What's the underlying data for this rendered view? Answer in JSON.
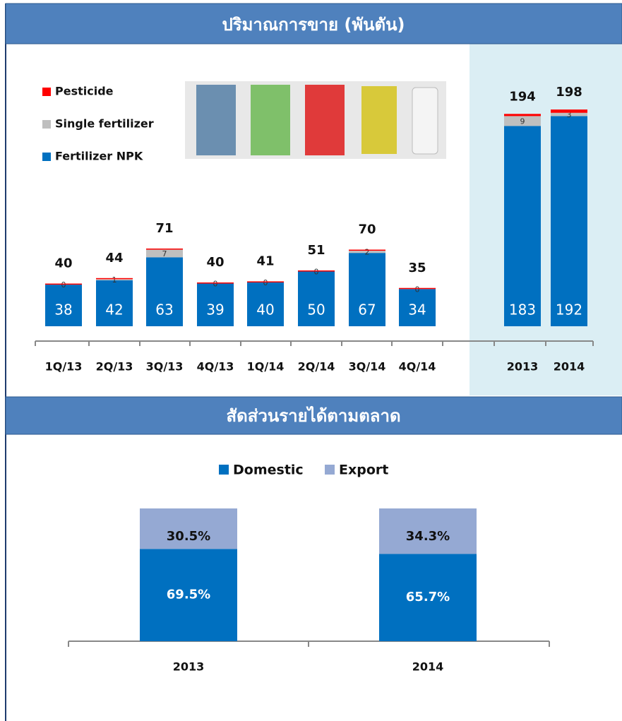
{
  "chart_data": [
    {
      "type": "stacked-bar",
      "title": "ปริมาณการขาย (พันตัน)",
      "categories": [
        "1Q/13",
        "2Q/13",
        "3Q/13",
        "4Q/13",
        "1Q/14",
        "2Q/14",
        "3Q/14",
        "4Q/14",
        "2013",
        "2014"
      ],
      "series": [
        {
          "name": "Fertilizer NPK",
          "color": "#0070c0",
          "values": [
            38,
            42,
            63,
            39,
            40,
            50,
            67,
            34,
            183,
            192
          ]
        },
        {
          "name": "Single fertilizer",
          "color": "#bfbfbf",
          "values": [
            0,
            1,
            7,
            0,
            0,
            0,
            2,
            0,
            9,
            3
          ]
        },
        {
          "name": "Pesticide",
          "color": "#ff0000",
          "values": [
            1,
            1,
            1,
            1,
            1,
            1,
            1,
            1,
            2,
            3
          ]
        }
      ],
      "totals": [
        40,
        44,
        71,
        40,
        41,
        51,
        70,
        35,
        194,
        198
      ],
      "ylim": [
        0,
        220
      ],
      "legend": "top-left"
    },
    {
      "type": "stacked-bar-percent",
      "title": "สัดส่วนรายได้ตามตลาด",
      "categories": [
        "2013",
        "2014"
      ],
      "series": [
        {
          "name": "Domestic",
          "color": "#0070c0",
          "values": [
            69.5,
            65.7
          ],
          "value_labels": [
            "69.5%",
            "65.7%"
          ]
        },
        {
          "name": "Export",
          "color": "#95a9d3",
          "values": [
            30.5,
            34.3
          ],
          "value_labels": [
            "30.5%",
            "34.3%"
          ]
        }
      ],
      "ylim": [
        0,
        100
      ],
      "legend": "top-center"
    }
  ]
}
